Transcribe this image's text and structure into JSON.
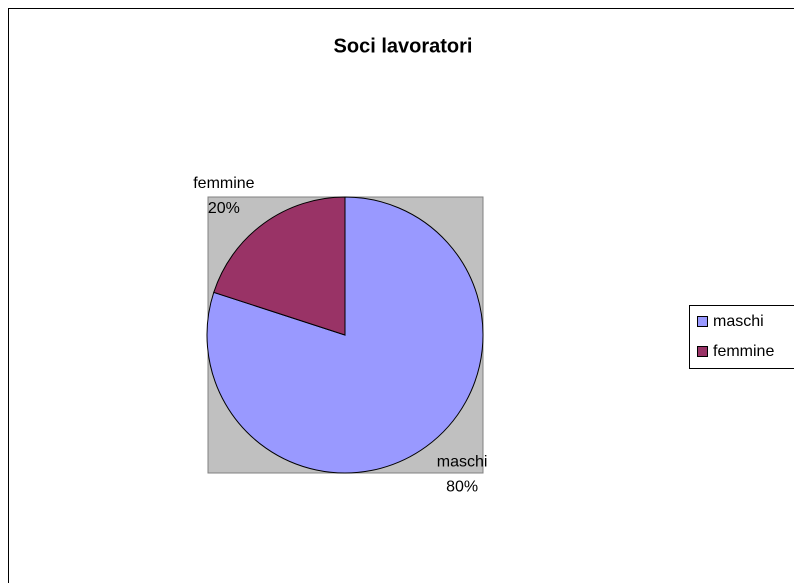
{
  "chart_data": {
    "type": "pie",
    "title": "Soci lavoratori",
    "categories": [
      "maschi",
      "femmine"
    ],
    "values": [
      80,
      20
    ],
    "value_labels": [
      "80%",
      "20%"
    ],
    "colors": [
      "#9999ff",
      "#993366"
    ],
    "legend": "right"
  }
}
